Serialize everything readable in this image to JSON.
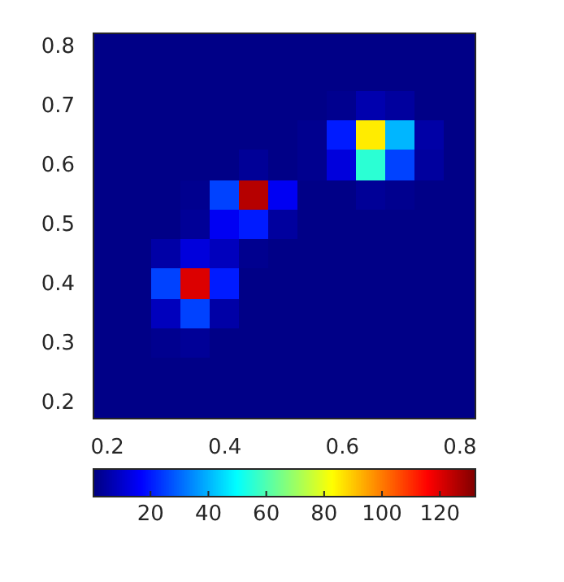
{
  "chart_data": {
    "type": "heatmap",
    "categories": [
      "0.2",
      null,
      null,
      null,
      "0.4",
      null,
      null,
      null,
      "0.6",
      null,
      null,
      null,
      "0.8"
    ],
    "y_categories": [
      "0.8",
      null,
      "0.7",
      null,
      "0.6",
      null,
      "0.5",
      null,
      "0.4",
      null,
      "0.3",
      null,
      "0.2"
    ],
    "cells": [
      [
        1,
        1,
        1,
        1,
        1,
        1,
        1,
        1,
        1,
        1,
        1,
        1,
        1
      ],
      [
        1,
        1,
        1,
        1,
        1,
        1,
        1,
        1,
        1,
        1,
        1,
        1,
        1
      ],
      [
        1,
        1,
        1,
        1,
        1,
        1,
        1,
        1,
        2,
        6,
        4,
        1,
        1
      ],
      [
        1,
        1,
        1,
        1,
        1,
        1,
        1,
        2,
        20,
        85,
        40,
        5,
        1
      ],
      [
        1,
        1,
        1,
        1,
        1,
        3,
        1,
        2,
        12,
        55,
        25,
        4,
        1
      ],
      [
        1,
        1,
        1,
        2,
        25,
        125,
        15,
        1,
        1,
        3,
        2,
        1,
        1
      ],
      [
        1,
        1,
        1,
        3,
        15,
        20,
        4,
        1,
        1,
        1,
        1,
        1,
        1
      ],
      [
        1,
        1,
        5,
        12,
        8,
        2,
        1,
        1,
        1,
        1,
        1,
        1,
        1
      ],
      [
        1,
        1,
        25,
        120,
        20,
        1,
        1,
        1,
        1,
        1,
        1,
        1,
        1
      ],
      [
        1,
        1,
        8,
        25,
        5,
        1,
        1,
        1,
        1,
        1,
        1,
        1,
        1
      ],
      [
        1,
        1,
        2,
        3,
        1,
        1,
        1,
        1,
        1,
        1,
        1,
        1,
        1
      ],
      [
        1,
        1,
        1,
        1,
        1,
        1,
        1,
        1,
        1,
        1,
        1,
        1,
        1
      ],
      [
        1,
        1,
        1,
        1,
        1,
        1,
        1,
        1,
        1,
        1,
        1,
        1,
        1
      ]
    ],
    "clim": [
      0,
      132
    ],
    "cticks": [
      20,
      40,
      60,
      80,
      100,
      120
    ]
  }
}
